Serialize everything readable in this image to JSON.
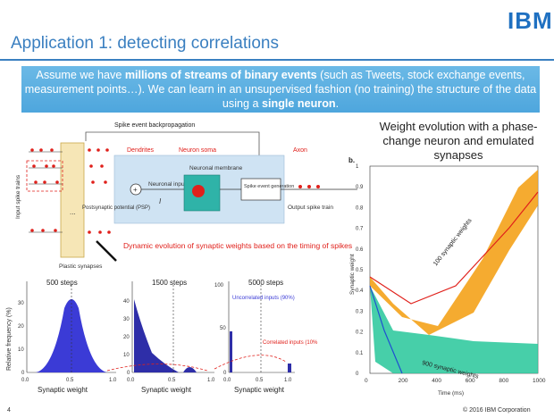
{
  "header": {
    "title": "Application 1: detecting correlations",
    "logo": "IBM"
  },
  "callout": {
    "part1": "Assume we have ",
    "bold1": "millions of streams of binary events",
    "part2": " (such as Tweets, stock exchange events, measurement points…). We can learn in an unsupervised fashion (no training) the structure of the data using a ",
    "bold2": "single neuron",
    "part3": "."
  },
  "diagram": {
    "backprop": "Spike event backpropagation",
    "dendrites": "Dendrites",
    "soma": "Neuron soma",
    "axon": "Axon",
    "input_trains": "Input spike trains",
    "plastic": "Plastic synapses",
    "psp": "Postsynaptic potential (PSP)",
    "neuronal_input": "Neuronal input",
    "input_symbol": "I",
    "membrane": "Neuronal membrane",
    "spike_gen": "Spike event generation",
    "output": "Output spike train",
    "dynamic": "Dynamic evolution of synaptic weights based on the timing of spikes",
    "ellipsis": "..."
  },
  "histograms": {
    "ylabel": "Relative frequency (%)",
    "panels": [
      {
        "title": "500 steps",
        "xlabel": "Synaptic weight",
        "yticks": [
          "0",
          "10",
          "20",
          "30"
        ],
        "xticks": [
          "0.0",
          "0.5",
          "1.0"
        ]
      },
      {
        "title": "1500 steps",
        "xlabel": "Synaptic weight",
        "yticks": [
          "0",
          "10",
          "20",
          "30",
          "40"
        ],
        "xticks": [
          "0.0",
          "0.5",
          "1.0"
        ]
      },
      {
        "title": "5000 steps",
        "xlabel": "Synaptic weight",
        "yticks": [
          "0",
          "50",
          "100"
        ],
        "xticks": [
          "0.0",
          "0.5",
          "1.0"
        ]
      }
    ],
    "uncorrelated": "Uncorrelated inputs (90%)",
    "correlated": "Correlated inputs (10%"
  },
  "weight_plot": {
    "title": "Weight evolution with a phase-change neuron and emulated synapses",
    "panel_label": "b.",
    "ylabel": "Synaptic weight",
    "xlabel": "Time (ms)",
    "yticks": [
      "0",
      "0.1",
      "0.2",
      "0.3",
      "0.4",
      "0.5",
      "0.6",
      "0.7",
      "0.8",
      "0.9",
      "1"
    ],
    "xticks": [
      "0",
      "200",
      "400",
      "600",
      "800",
      "1000"
    ],
    "upper_label": "100 synaptic weights",
    "lower_label": "900 synaptic weights"
  },
  "footer": {
    "page": "4",
    "copyright": "© 2016 IBM Corporation"
  }
}
